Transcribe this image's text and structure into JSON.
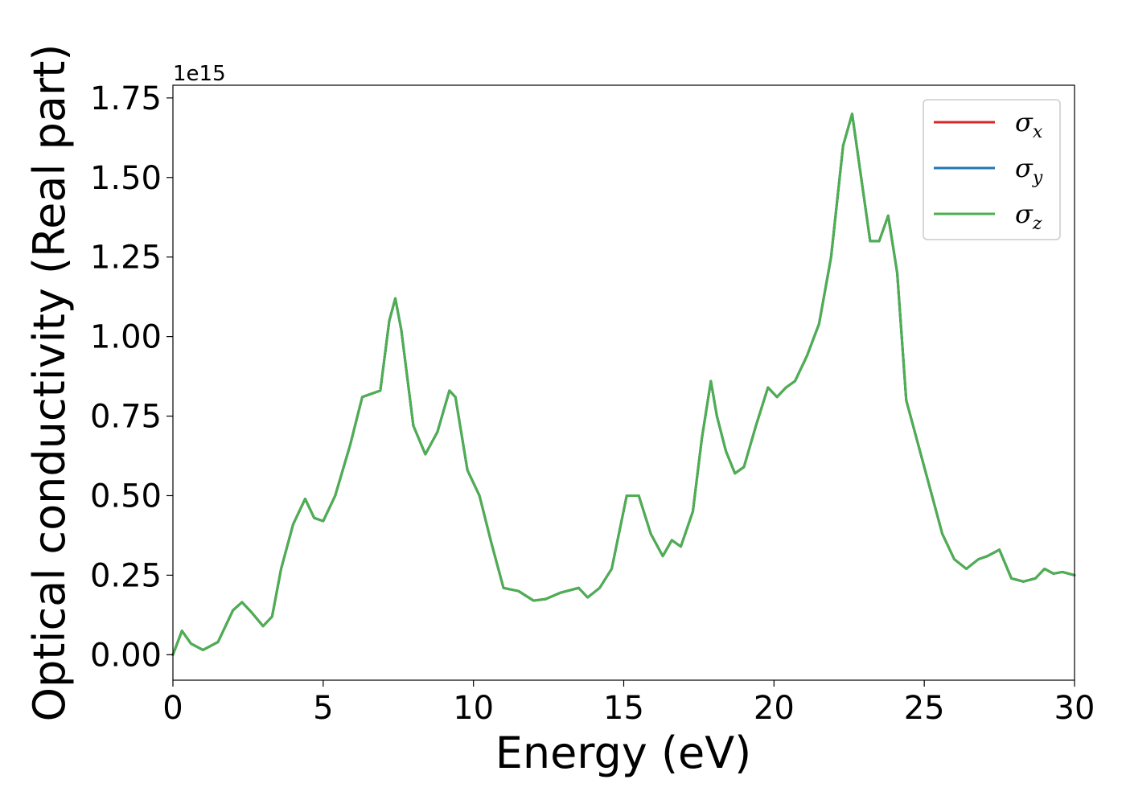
{
  "chart_data": {
    "type": "line",
    "title": "",
    "xlabel": "Energy (eV)",
    "ylabel": "Optical conductivity (Real part)",
    "y_offset_label": "1e15",
    "xlim": [
      0,
      30
    ],
    "ylim": [
      -0.08,
      1.79
    ],
    "x_ticks": [
      0,
      5,
      10,
      15,
      20,
      25,
      30
    ],
    "x_tick_labels": [
      "0",
      "5",
      "10",
      "15",
      "20",
      "25",
      "30"
    ],
    "y_ticks": [
      0.0,
      0.25,
      0.5,
      0.75,
      1.0,
      1.25,
      1.5,
      1.75
    ],
    "y_tick_labels": [
      "0.00",
      "0.25",
      "0.50",
      "0.75",
      "1.00",
      "1.25",
      "1.50",
      "1.75"
    ],
    "grid": false,
    "legend_position": "top-right",
    "legend": [
      {
        "symbol": "σ",
        "sub": "x",
        "color": "#d62728"
      },
      {
        "symbol": "σ",
        "sub": "y",
        "color": "#1f77b4"
      },
      {
        "symbol": "σ",
        "sub": "z",
        "color": "#4caf50"
      }
    ],
    "x": [
      0,
      0.3,
      0.6,
      1.0,
      1.5,
      2.0,
      2.3,
      2.6,
      3.0,
      3.3,
      3.6,
      4.0,
      4.4,
      4.7,
      5.0,
      5.4,
      5.9,
      6.3,
      6.6,
      6.9,
      7.2,
      7.4,
      7.6,
      8.0,
      8.4,
      8.8,
      9.2,
      9.4,
      9.8,
      10.2,
      10.6,
      11.0,
      11.5,
      12.0,
      12.4,
      12.9,
      13.5,
      13.8,
      14.2,
      14.6,
      15.1,
      15.5,
      15.9,
      16.3,
      16.6,
      16.9,
      17.3,
      17.6,
      17.9,
      18.1,
      18.4,
      18.7,
      19.0,
      19.4,
      19.8,
      20.1,
      20.4,
      20.7,
      21.1,
      21.5,
      21.9,
      22.3,
      22.6,
      22.9,
      23.2,
      23.5,
      23.8,
      24.1,
      24.4,
      24.8,
      25.2,
      25.6,
      26.0,
      26.4,
      26.8,
      27.1,
      27.5,
      27.9,
      28.3,
      28.7,
      29.0,
      29.3,
      29.6,
      30.0
    ],
    "series": [
      {
        "name": "σ_x",
        "color": "#d62728",
        "values": [
          0.0,
          0.075,
          0.035,
          0.015,
          0.04,
          0.14,
          0.165,
          0.135,
          0.09,
          0.12,
          0.27,
          0.41,
          0.49,
          0.43,
          0.42,
          0.5,
          0.66,
          0.81,
          0.82,
          0.83,
          1.05,
          1.12,
          1.02,
          0.72,
          0.63,
          0.7,
          0.83,
          0.81,
          0.58,
          0.5,
          0.35,
          0.21,
          0.2,
          0.17,
          0.175,
          0.195,
          0.21,
          0.18,
          0.21,
          0.27,
          0.5,
          0.5,
          0.38,
          0.31,
          0.36,
          0.34,
          0.45,
          0.68,
          0.86,
          0.75,
          0.64,
          0.57,
          0.59,
          0.72,
          0.84,
          0.81,
          0.84,
          0.86,
          0.94,
          1.04,
          1.25,
          1.6,
          1.7,
          1.5,
          1.3,
          1.3,
          1.38,
          1.2,
          0.8,
          0.66,
          0.52,
          0.38,
          0.3,
          0.27,
          0.3,
          0.31,
          0.33,
          0.24,
          0.23,
          0.24,
          0.27,
          0.255,
          0.26,
          0.25
        ]
      },
      {
        "name": "σ_y",
        "color": "#1f77b4",
        "values": [
          0.0,
          0.075,
          0.035,
          0.015,
          0.04,
          0.14,
          0.165,
          0.135,
          0.09,
          0.12,
          0.27,
          0.41,
          0.49,
          0.43,
          0.42,
          0.5,
          0.66,
          0.81,
          0.82,
          0.83,
          1.05,
          1.12,
          1.02,
          0.72,
          0.63,
          0.7,
          0.83,
          0.81,
          0.58,
          0.5,
          0.35,
          0.21,
          0.2,
          0.17,
          0.175,
          0.195,
          0.21,
          0.18,
          0.21,
          0.27,
          0.5,
          0.5,
          0.38,
          0.31,
          0.36,
          0.34,
          0.45,
          0.68,
          0.86,
          0.75,
          0.64,
          0.57,
          0.59,
          0.72,
          0.84,
          0.81,
          0.84,
          0.86,
          0.94,
          1.04,
          1.25,
          1.6,
          1.7,
          1.5,
          1.3,
          1.3,
          1.38,
          1.2,
          0.8,
          0.66,
          0.52,
          0.38,
          0.3,
          0.27,
          0.3,
          0.31,
          0.33,
          0.24,
          0.23,
          0.24,
          0.27,
          0.255,
          0.26,
          0.25
        ]
      },
      {
        "name": "σ_z",
        "color": "#4caf50",
        "values": [
          0.0,
          0.075,
          0.035,
          0.015,
          0.04,
          0.14,
          0.165,
          0.135,
          0.09,
          0.12,
          0.27,
          0.41,
          0.49,
          0.43,
          0.42,
          0.5,
          0.66,
          0.81,
          0.82,
          0.83,
          1.05,
          1.12,
          1.02,
          0.72,
          0.63,
          0.7,
          0.83,
          0.81,
          0.58,
          0.5,
          0.35,
          0.21,
          0.2,
          0.17,
          0.175,
          0.195,
          0.21,
          0.18,
          0.21,
          0.27,
          0.5,
          0.5,
          0.38,
          0.31,
          0.36,
          0.34,
          0.45,
          0.68,
          0.86,
          0.75,
          0.64,
          0.57,
          0.59,
          0.72,
          0.84,
          0.81,
          0.84,
          0.86,
          0.94,
          1.04,
          1.25,
          1.6,
          1.7,
          1.5,
          1.3,
          1.3,
          1.38,
          1.2,
          0.8,
          0.66,
          0.52,
          0.38,
          0.3,
          0.27,
          0.3,
          0.31,
          0.33,
          0.24,
          0.23,
          0.24,
          0.27,
          0.255,
          0.26,
          0.25
        ]
      }
    ]
  }
}
